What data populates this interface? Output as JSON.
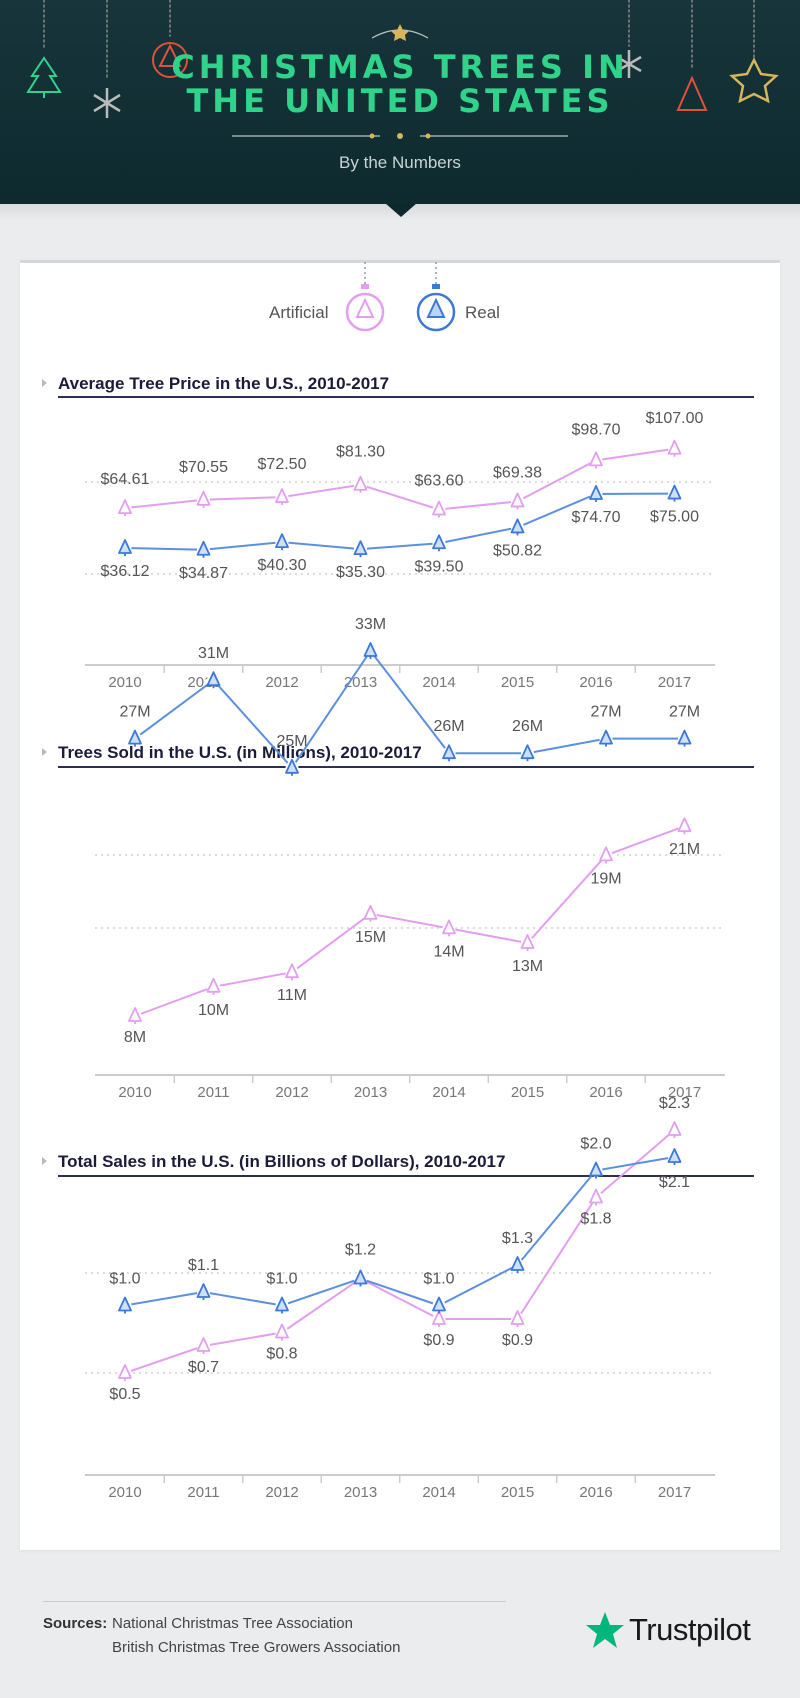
{
  "header": {
    "title_line1": "CHRISTMAS TREES IN",
    "title_line2": "THE UNITED STATES",
    "subtitle": "By the Numbers"
  },
  "legend": {
    "artificial_label": "Artificial",
    "real_label": "Real"
  },
  "colors": {
    "artificial": "#e39ef0",
    "real": "#5b8fe0",
    "header_bg": "#0f2f33",
    "title_green": "#2fd48a",
    "axis": "#cccccc"
  },
  "chart_data": [
    {
      "type": "line",
      "title": "Average Tree Price in the U.S., 2010-2017",
      "categories": [
        "2010",
        "2011",
        "2012",
        "2013",
        "2014",
        "2015",
        "2016",
        "2017"
      ],
      "ylim": [
        20,
        120
      ],
      "series": [
        {
          "name": "Artificial",
          "values": [
            64.61,
            70.55,
            72.5,
            81.3,
            63.6,
            69.38,
            98.7,
            107.0
          ],
          "labels": [
            "$64.61",
            "$70.55",
            "$72.50",
            "$81.30",
            "$63.60",
            "$69.38",
            "$98.70",
            "$107.00"
          ]
        },
        {
          "name": "Real",
          "values": [
            36.12,
            34.87,
            40.3,
            35.3,
            39.5,
            50.82,
            74.7,
            75.0
          ],
          "labels": [
            "$36.12",
            "$34.87",
            "$40.30",
            "$35.30",
            "$39.50",
            "$50.82",
            "$74.70",
            "$75.00"
          ]
        }
      ]
    },
    {
      "type": "line",
      "title": "Trees Sold in the U.S. (in Millions), 2010-2017",
      "categories": [
        "2010",
        "2011",
        "2012",
        "2013",
        "2014",
        "2015",
        "2016",
        "2017"
      ],
      "ylim": [
        0,
        40
      ],
      "series": [
        {
          "name": "Artificial",
          "values": [
            8,
            10,
            11,
            15,
            14,
            13,
            19,
            21
          ],
          "labels": [
            "8M",
            "10M",
            "11M",
            "15M",
            "14M",
            "13M",
            "19M",
            "21M"
          ]
        },
        {
          "name": "Real",
          "values": [
            27,
            31,
            25,
            33,
            26,
            26,
            27,
            27
          ],
          "labels": [
            "27M",
            "31M",
            "25M",
            "33M",
            "26M",
            "26M",
            "27M",
            "27M"
          ]
        }
      ]
    },
    {
      "type": "line",
      "title": "Total Sales in the U.S. (in Billions of Dollars), 2010-2017",
      "categories": [
        "2010",
        "2011",
        "2012",
        "2013",
        "2014",
        "2015",
        "2016",
        "2017"
      ],
      "ylim": [
        0,
        2.5
      ],
      "series": [
        {
          "name": "Artificial",
          "values": [
            0.5,
            0.7,
            0.8,
            1.2,
            0.9,
            0.9,
            1.8,
            2.3
          ],
          "labels": [
            "$0.5",
            "$0.7",
            "$0.8",
            "$1.2",
            "$0.9",
            "$0.9",
            "$1.8",
            "$2.3"
          ]
        },
        {
          "name": "Real",
          "values": [
            1.0,
            1.1,
            1.0,
            1.2,
            1.0,
            1.3,
            2.0,
            2.1
          ],
          "labels": [
            "$1.0",
            "$1.1",
            "$1.0",
            "",
            "$1.0",
            "$1.3",
            "$2.0",
            "$2.1"
          ]
        }
      ]
    }
  ],
  "sources": {
    "label": "Sources:",
    "items": [
      "National Christmas Tree Association",
      "British Christmas Tree Growers Association"
    ]
  },
  "logo": {
    "text": "Trustpilot",
    "icon": "star-icon"
  }
}
